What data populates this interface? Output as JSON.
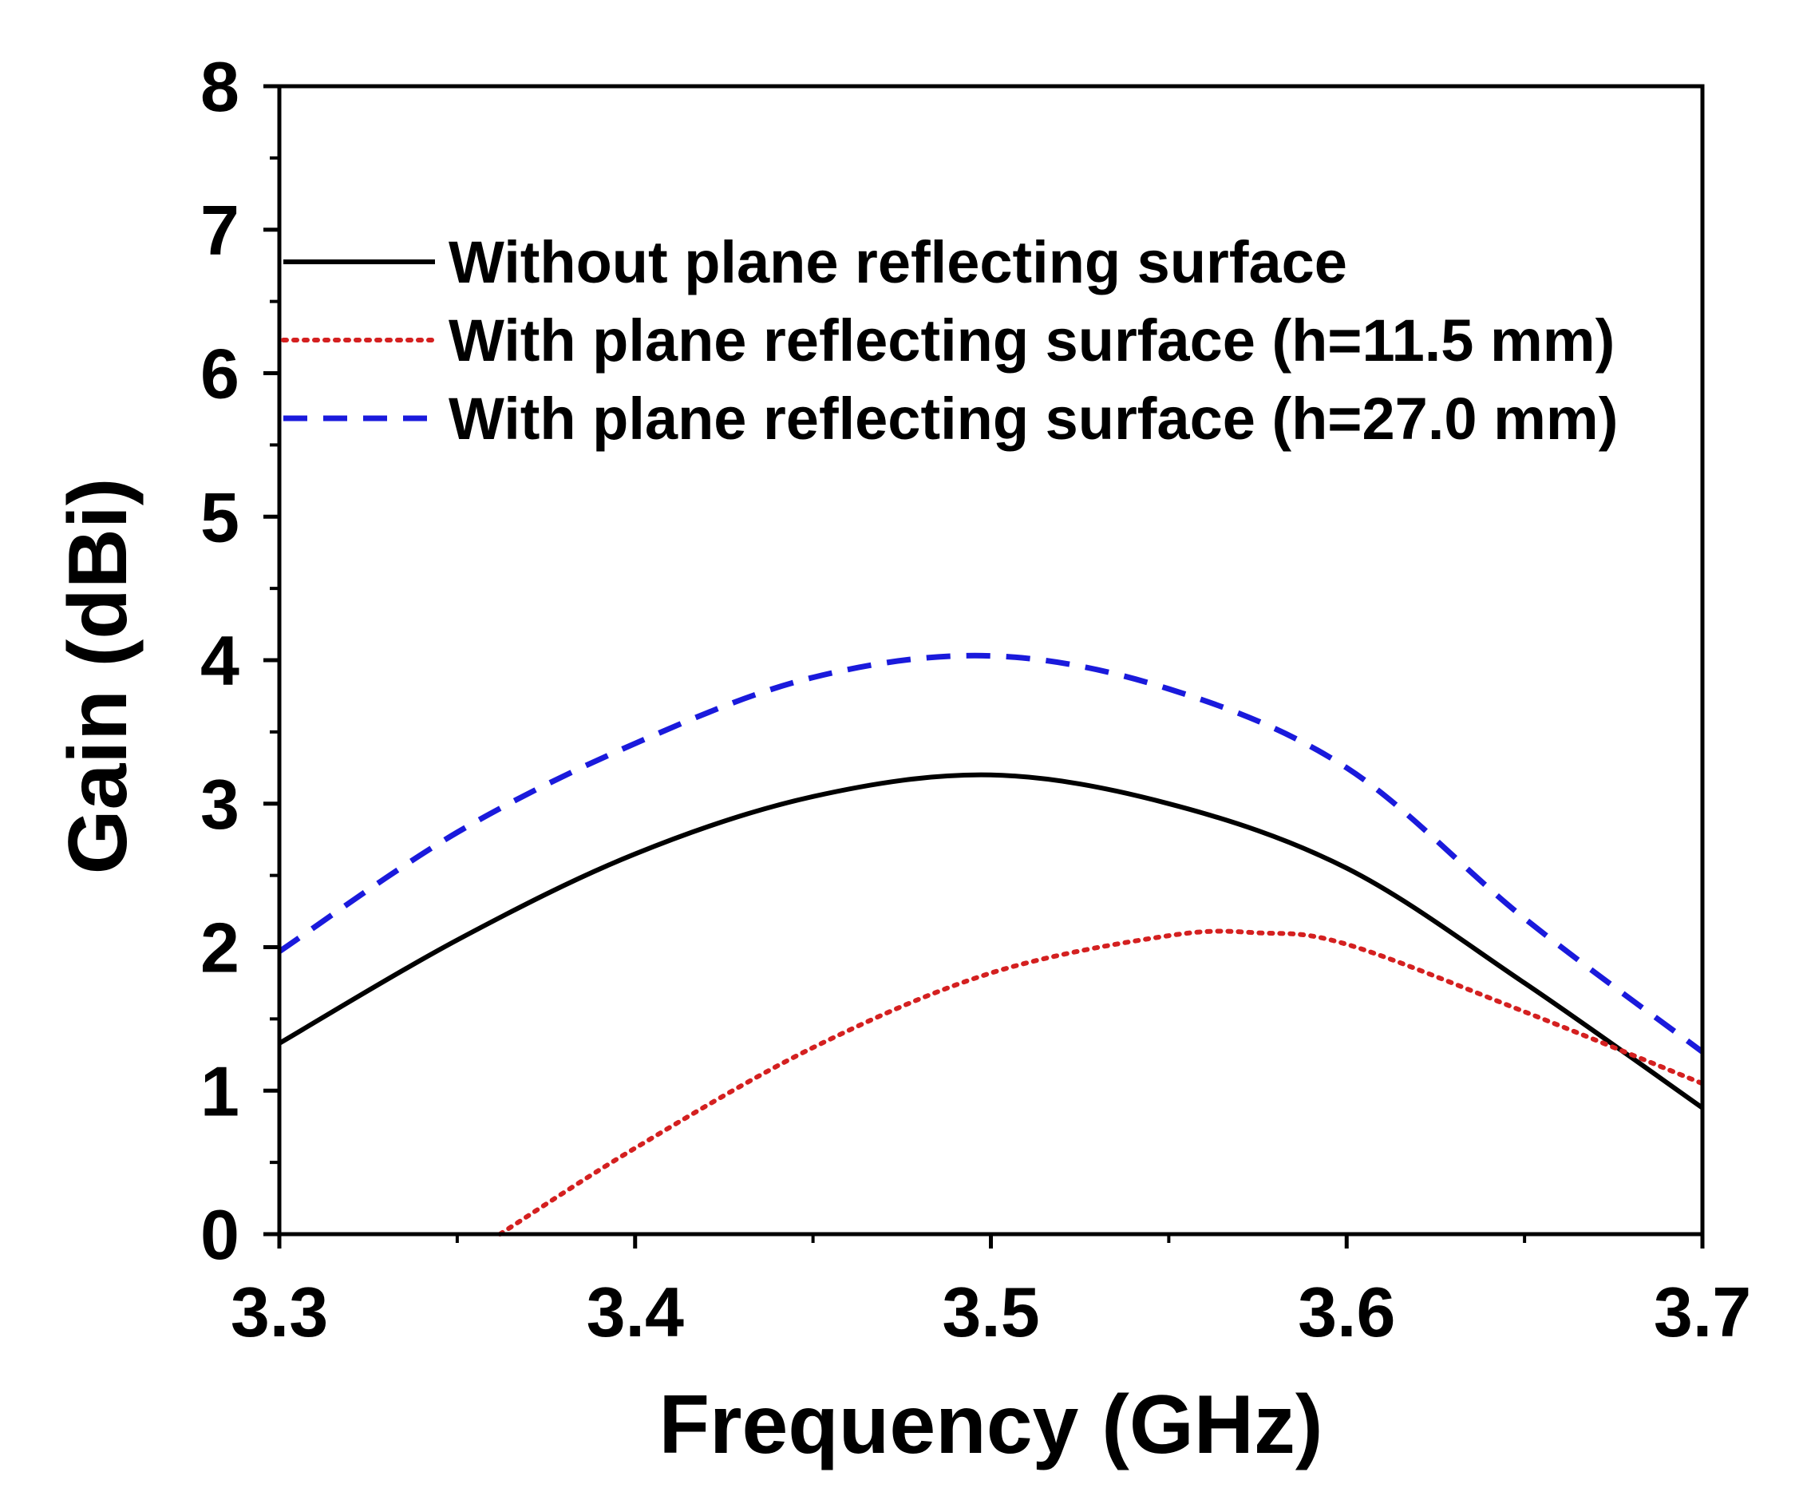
{
  "chart_data": {
    "type": "line",
    "xlabel": "Frequency (GHz)",
    "ylabel": "Gain (dBi)",
    "xlim": [
      3.3,
      3.7
    ],
    "ylim": [
      0,
      8
    ],
    "xticks": [
      3.3,
      3.4,
      3.5,
      3.6,
      3.7
    ],
    "xtick_labels": [
      "3.3",
      "3.4",
      "3.5",
      "3.6",
      "3.7"
    ],
    "yticks": [
      0,
      1,
      2,
      3,
      4,
      5,
      6,
      7,
      8
    ],
    "ytick_labels": [
      "0",
      "1",
      "2",
      "3",
      "4",
      "5",
      "6",
      "7",
      "8"
    ],
    "legend_position": "top-left",
    "series": [
      {
        "name": "Without plane reflecting surface",
        "color": "#000000",
        "style": "solid",
        "x": [
          3.3,
          3.35,
          3.4,
          3.45,
          3.5,
          3.55,
          3.6,
          3.65,
          3.7
        ],
        "y": [
          1.33,
          2.05,
          2.65,
          3.05,
          3.2,
          3.0,
          2.55,
          1.75,
          0.88
        ]
      },
      {
        "name": "With plane reflecting surface (h=11.5 mm)",
        "color": "#d42020",
        "style": "dotted",
        "x": [
          3.362,
          3.4,
          3.45,
          3.5,
          3.55,
          3.575,
          3.6,
          3.65,
          3.7
        ],
        "y": [
          0.0,
          0.6,
          1.3,
          1.82,
          2.08,
          2.1,
          2.02,
          1.55,
          1.05
        ]
      },
      {
        "name": "With plane reflecting surface (h=27.0 mm)",
        "color": "#1a1adc",
        "style": "dashed",
        "x": [
          3.3,
          3.35,
          3.4,
          3.45,
          3.5,
          3.55,
          3.6,
          3.65,
          3.7
        ],
        "y": [
          1.97,
          2.8,
          3.42,
          3.88,
          4.03,
          3.8,
          3.25,
          2.2,
          1.27
        ]
      }
    ]
  }
}
